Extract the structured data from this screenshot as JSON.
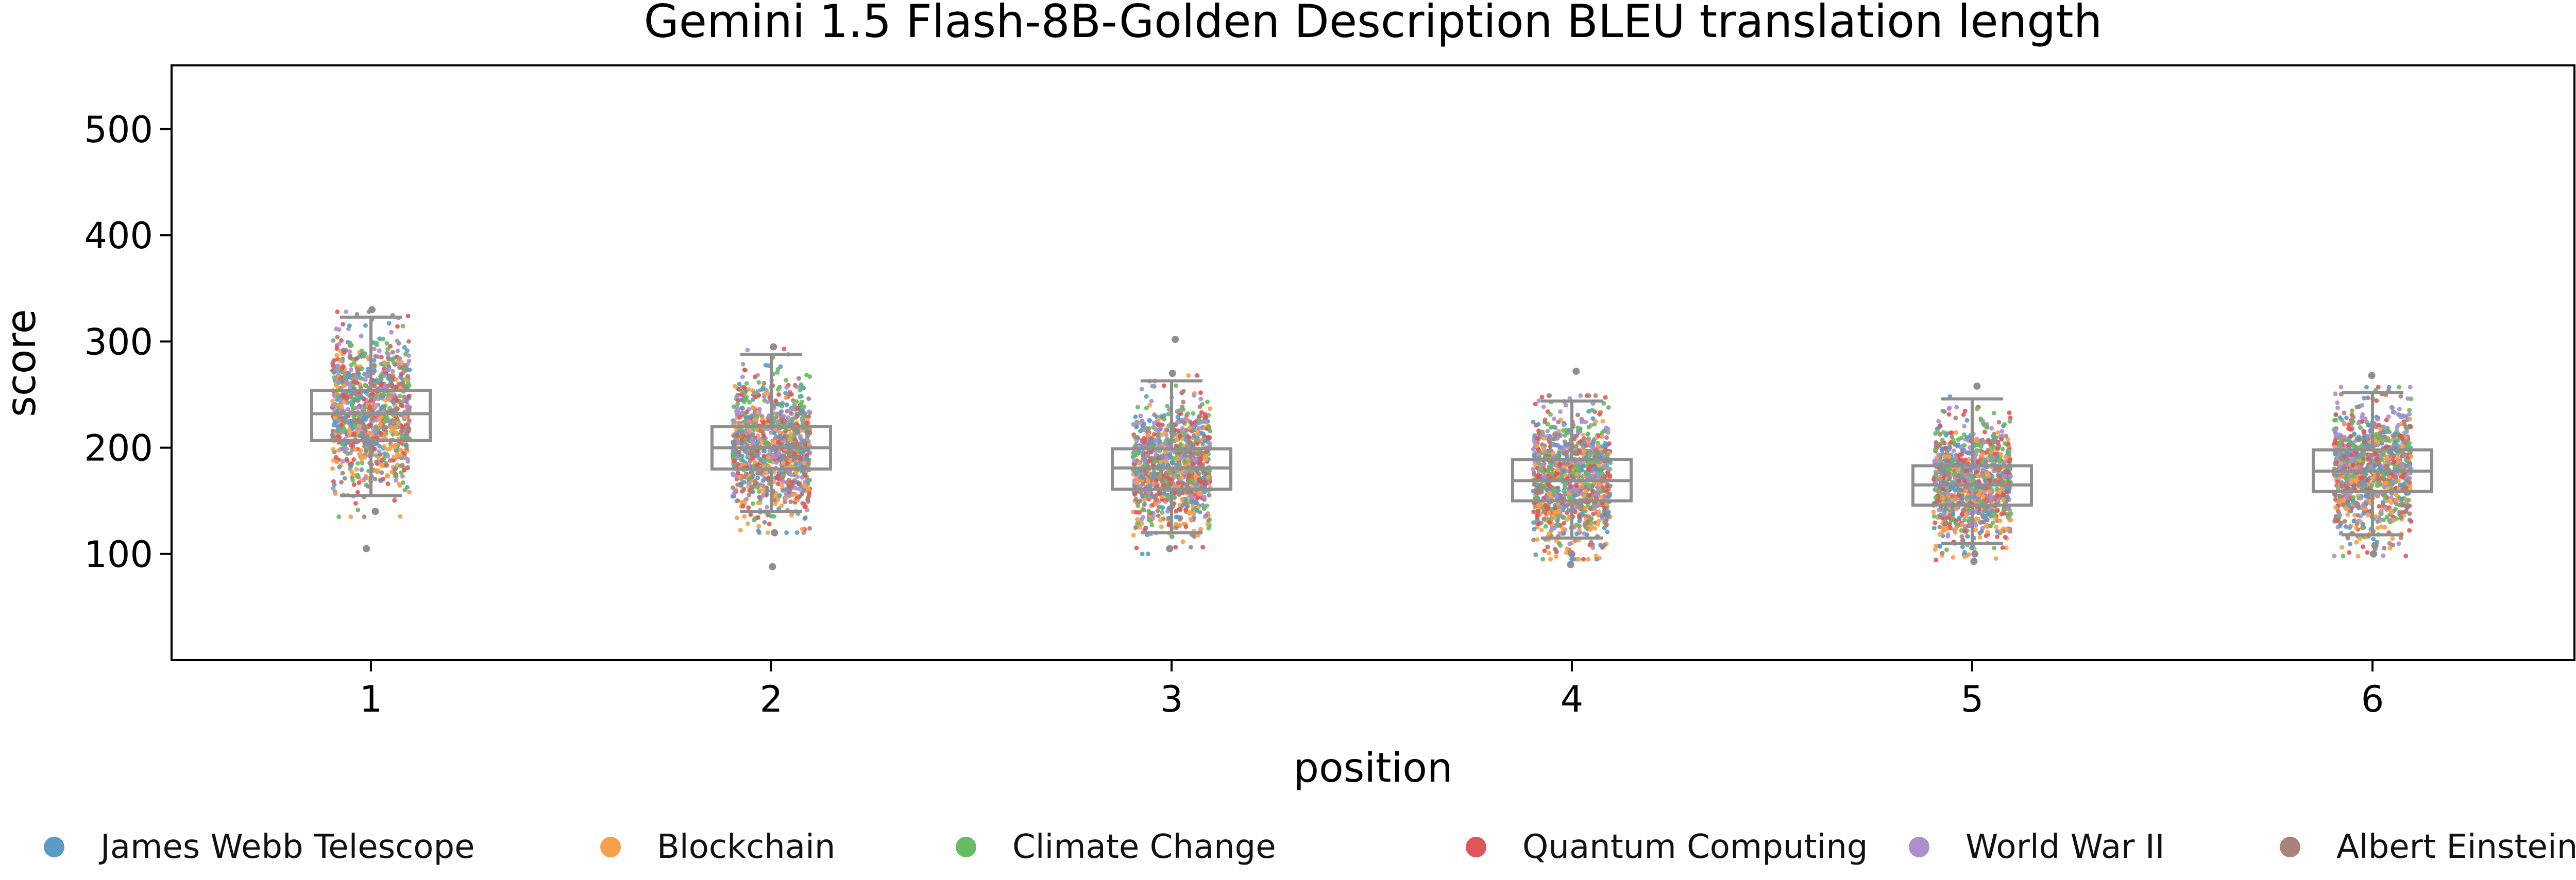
{
  "chart_data": {
    "type": "box+strip",
    "title": "Gemini 1.5 Flash-8B-Golden Description BLEU translation length",
    "xlabel": "position",
    "ylabel": "score",
    "categories": [
      "1",
      "2",
      "3",
      "4",
      "5",
      "6"
    ],
    "ylim": [
      0,
      560
    ],
    "yticks": [
      100,
      200,
      300,
      400,
      500
    ],
    "grid": false,
    "legend_position": "bottom",
    "series": [
      {
        "name": "James Webb Telescope",
        "color": "#5b9bc8"
      },
      {
        "name": "Blockchain",
        "color": "#f7a04a"
      },
      {
        "name": "Climate Change",
        "color": "#67bb62"
      },
      {
        "name": "Quantum Computing",
        "color": "#e05759"
      },
      {
        "name": "World War II",
        "color": "#ad8fcc"
      },
      {
        "name": "Albert Einstein",
        "color": "#a9827a"
      }
    ],
    "boxes": [
      {
        "position": "1",
        "whisker_low": 155,
        "q1": 207,
        "median": 232,
        "q3": 254,
        "whisker_high": 323,
        "outliers": [
          105,
          140,
          330
        ]
      },
      {
        "position": "2",
        "whisker_low": 140,
        "q1": 180,
        "median": 200,
        "q3": 220,
        "whisker_high": 288,
        "outliers": [
          88,
          120,
          295
        ]
      },
      {
        "position": "3",
        "whisker_low": 120,
        "q1": 161,
        "median": 181,
        "q3": 199,
        "whisker_high": 263,
        "outliers": [
          105,
          270,
          302
        ]
      },
      {
        "position": "4",
        "whisker_low": 115,
        "q1": 150,
        "median": 169,
        "q3": 189,
        "whisker_high": 244,
        "outliers": [
          90,
          100,
          272
        ]
      },
      {
        "position": "5",
        "whisker_low": 110,
        "q1": 146,
        "median": 165,
        "q3": 183,
        "whisker_high": 246,
        "outliers": [
          93,
          100,
          258
        ]
      },
      {
        "position": "6",
        "whisker_low": 118,
        "q1": 159,
        "median": 178,
        "q3": 198,
        "whisker_high": 252,
        "outliers": [
          100,
          108,
          268
        ]
      }
    ]
  }
}
